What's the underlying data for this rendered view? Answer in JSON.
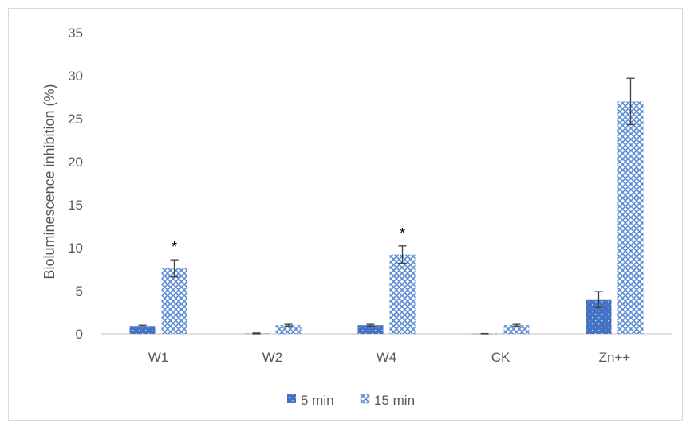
{
  "chart_data": {
    "type": "bar",
    "categories": [
      "W1",
      "W2",
      "W4",
      "CK",
      "Zn++"
    ],
    "series": [
      {
        "name": "5 min",
        "values": [
          0.9,
          0.05,
          1.0,
          0.02,
          4.0
        ],
        "errors": [
          0.1,
          0.05,
          0.1,
          0.02,
          0.9
        ],
        "color": "#4472c4",
        "pattern": "dotted-solid"
      },
      {
        "name": "15 min",
        "values": [
          7.6,
          1.0,
          9.2,
          1.0,
          27.0
        ],
        "errors": [
          1.0,
          0.1,
          1.0,
          0.1,
          2.7
        ],
        "color": "#8faadc",
        "pattern": "checker-hatch"
      }
    ],
    "annotations": [
      {
        "category": "W1",
        "series": "15 min",
        "text": "*"
      },
      {
        "category": "W4",
        "series": "15 min",
        "text": "*"
      }
    ],
    "title": "",
    "xlabel": "",
    "ylabel": "Bioluminescence inhibition (%)",
    "ylim": [
      0,
      35
    ],
    "yticks": [
      0,
      5,
      10,
      15,
      20,
      25,
      30,
      35
    ],
    "grid": false,
    "legend_position": "bottom"
  }
}
